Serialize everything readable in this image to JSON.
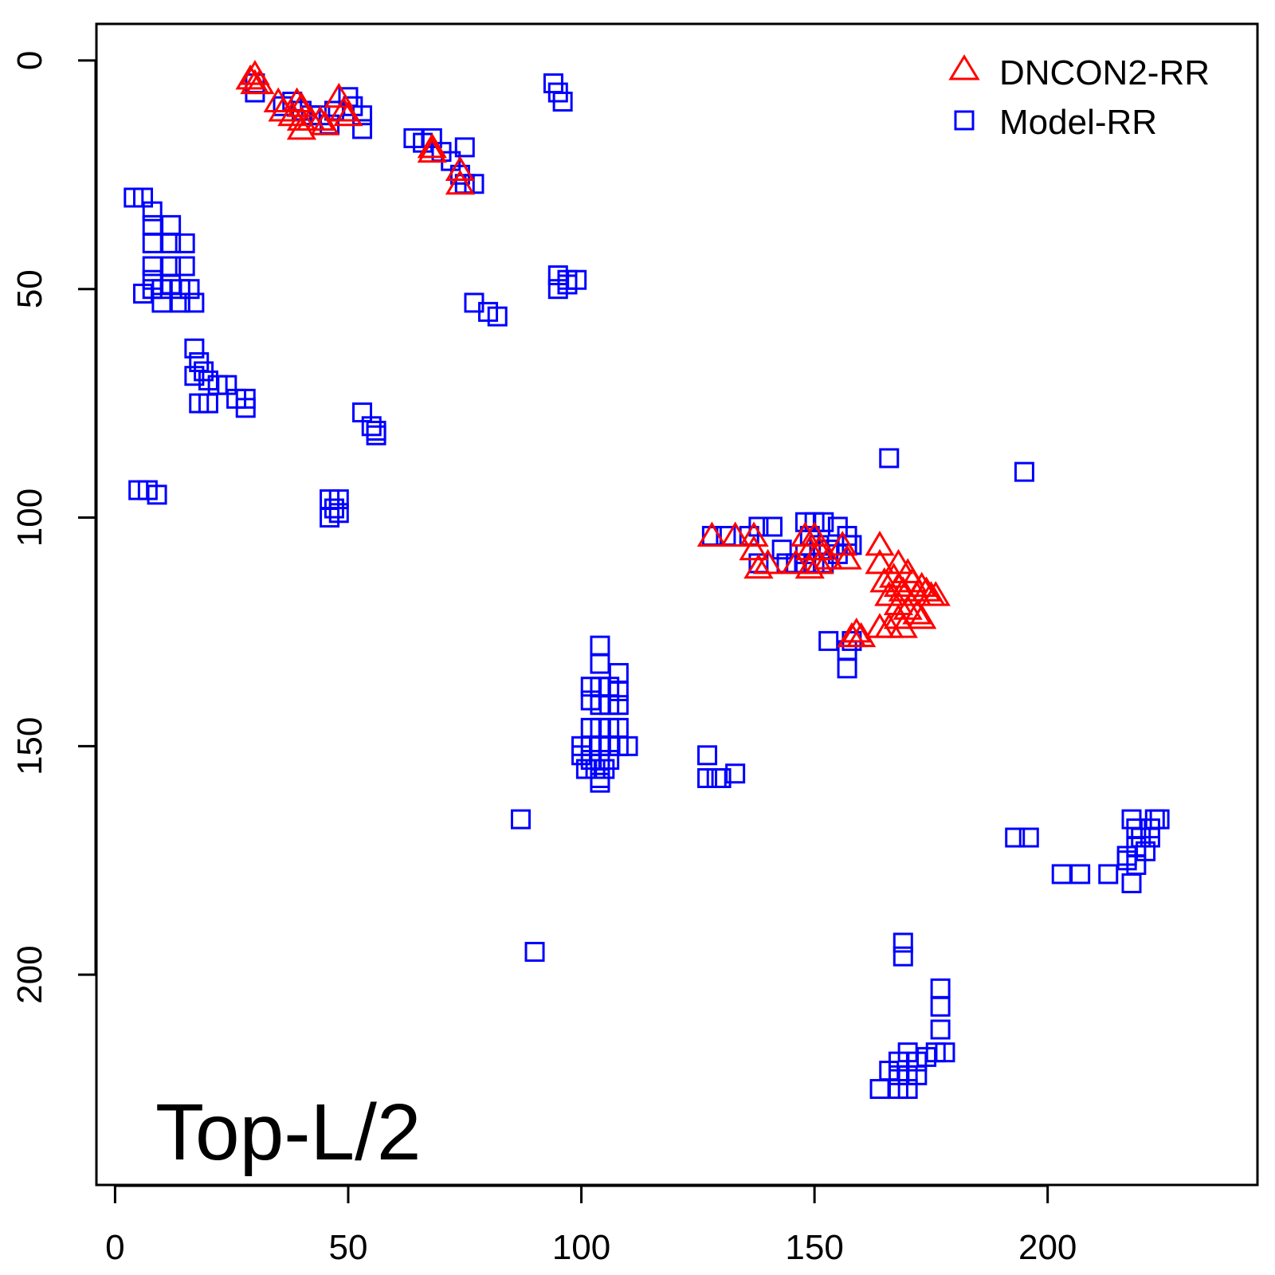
{
  "chart_data": {
    "type": "scatter",
    "title": "",
    "annotation": "Top-L/2",
    "x_ticks": [
      "0",
      "50",
      "100",
      "150",
      "200"
    ],
    "y_ticks": [
      "0",
      "50",
      "100",
      "150",
      "200"
    ],
    "xlim": [
      -4,
      245
    ],
    "ylim": [
      -8,
      246
    ],
    "y_inverted": true,
    "legend_position": "top-right",
    "series": [
      {
        "name": "DNCON2-RR",
        "marker": "triangle",
        "color": "#ff0000",
        "points": [
          [
            29,
            4
          ],
          [
            30,
            3
          ],
          [
            30,
            5
          ],
          [
            31,
            5
          ],
          [
            35,
            9
          ],
          [
            36,
            11
          ],
          [
            38,
            12
          ],
          [
            39,
            9
          ],
          [
            40,
            10
          ],
          [
            40,
            13
          ],
          [
            40,
            15
          ],
          [
            42,
            13
          ],
          [
            44,
            13
          ],
          [
            45,
            14
          ],
          [
            48,
            8
          ],
          [
            49,
            11
          ],
          [
            50,
            12
          ],
          [
            68,
            19
          ],
          [
            68,
            20
          ],
          [
            74,
            24
          ],
          [
            74,
            27
          ],
          [
            128,
            104
          ],
          [
            133,
            104
          ],
          [
            137,
            104
          ],
          [
            137,
            107
          ],
          [
            138,
            111
          ],
          [
            140,
            110
          ],
          [
            146,
            110
          ],
          [
            148,
            104
          ],
          [
            149,
            107
          ],
          [
            149,
            111
          ],
          [
            150,
            104
          ],
          [
            151,
            107
          ],
          [
            151,
            110
          ],
          [
            153,
            109
          ],
          [
            156,
            106
          ],
          [
            157,
            109
          ],
          [
            164,
            106
          ],
          [
            164,
            110
          ],
          [
            165,
            114
          ],
          [
            166,
            117
          ],
          [
            167,
            113
          ],
          [
            168,
            110
          ],
          [
            168,
            115
          ],
          [
            168,
            119
          ],
          [
            169,
            116
          ],
          [
            170,
            112
          ],
          [
            170,
            120
          ],
          [
            171,
            114
          ],
          [
            172,
            117
          ],
          [
            173,
            115
          ],
          [
            174,
            116
          ],
          [
            175,
            117
          ],
          [
            176,
            117
          ],
          [
            164,
            124
          ],
          [
            166,
            124
          ],
          [
            168,
            122
          ],
          [
            169,
            124
          ],
          [
            172,
            121
          ],
          [
            173,
            122
          ],
          [
            158,
            126
          ],
          [
            159,
            125
          ],
          [
            160,
            126
          ]
        ]
      },
      {
        "name": "Model-RR",
        "marker": "square",
        "color": "#0000ff",
        "points": [
          [
            30,
            5
          ],
          [
            30,
            7
          ],
          [
            36,
            10
          ],
          [
            38,
            9
          ],
          [
            40,
            11
          ],
          [
            42,
            12
          ],
          [
            44,
            12
          ],
          [
            46,
            14
          ],
          [
            47,
            11
          ],
          [
            50,
            8
          ],
          [
            51,
            10
          ],
          [
            53,
            12
          ],
          [
            53,
            15
          ],
          [
            94,
            5
          ],
          [
            95,
            7
          ],
          [
            96,
            9
          ],
          [
            64,
            17
          ],
          [
            66,
            18
          ],
          [
            68,
            17
          ],
          [
            70,
            20
          ],
          [
            72,
            22
          ],
          [
            74,
            25
          ],
          [
            75,
            19
          ],
          [
            75,
            27
          ],
          [
            77,
            27
          ],
          [
            4,
            30
          ],
          [
            6,
            30
          ],
          [
            8,
            33
          ],
          [
            12,
            36
          ],
          [
            8,
            36
          ],
          [
            8,
            40
          ],
          [
            12,
            40
          ],
          [
            15,
            40
          ],
          [
            8,
            45
          ],
          [
            12,
            45
          ],
          [
            15,
            45
          ],
          [
            8,
            48
          ],
          [
            8,
            50
          ],
          [
            10,
            50
          ],
          [
            12,
            49
          ],
          [
            14,
            50
          ],
          [
            16,
            50
          ],
          [
            6,
            51
          ],
          [
            10,
            53
          ],
          [
            14,
            53
          ],
          [
            17,
            53
          ],
          [
            95,
            47
          ],
          [
            97,
            48
          ],
          [
            99,
            48
          ],
          [
            95,
            50
          ],
          [
            97,
            49
          ],
          [
            77,
            53
          ],
          [
            80,
            55
          ],
          [
            82,
            56
          ],
          [
            17,
            63
          ],
          [
            18,
            66
          ],
          [
            17,
            69
          ],
          [
            19,
            68
          ],
          [
            20,
            70
          ],
          [
            22,
            71
          ],
          [
            24,
            71
          ],
          [
            18,
            75
          ],
          [
            20,
            75
          ],
          [
            26,
            74
          ],
          [
            28,
            74
          ],
          [
            28,
            76
          ],
          [
            53,
            77
          ],
          [
            55,
            80
          ],
          [
            56,
            81
          ],
          [
            56,
            82
          ],
          [
            5,
            94
          ],
          [
            7,
            94
          ],
          [
            9,
            95
          ],
          [
            46,
            96
          ],
          [
            47,
            98
          ],
          [
            48,
            99
          ],
          [
            46,
            100
          ],
          [
            48,
            96
          ],
          [
            128,
            104
          ],
          [
            131,
            104
          ],
          [
            136,
            104
          ],
          [
            138,
            102
          ],
          [
            141,
            102
          ],
          [
            143,
            107
          ],
          [
            146,
            110
          ],
          [
            148,
            101
          ],
          [
            150,
            101
          ],
          [
            152,
            101
          ],
          [
            155,
            102
          ],
          [
            157,
            104
          ],
          [
            149,
            104
          ],
          [
            151,
            106
          ],
          [
            153,
            107
          ],
          [
            155,
            108
          ],
          [
            157,
            106
          ],
          [
            158,
            106
          ],
          [
            138,
            110
          ],
          [
            144,
            110
          ],
          [
            148,
            108
          ],
          [
            148,
            110
          ],
          [
            150,
            110
          ],
          [
            152,
            110
          ],
          [
            166,
            87
          ],
          [
            195,
            90
          ],
          [
            153,
            127
          ],
          [
            157,
            129
          ],
          [
            158,
            127
          ],
          [
            157,
            133
          ],
          [
            104,
            128
          ],
          [
            104,
            132
          ],
          [
            102,
            137
          ],
          [
            104,
            137
          ],
          [
            106,
            137
          ],
          [
            108,
            134
          ],
          [
            102,
            140
          ],
          [
            104,
            141
          ],
          [
            106,
            141
          ],
          [
            108,
            138
          ],
          [
            108,
            141
          ],
          [
            102,
            146
          ],
          [
            104,
            146
          ],
          [
            106,
            146
          ],
          [
            108,
            146
          ],
          [
            108,
            150
          ],
          [
            110,
            150
          ],
          [
            100,
            150
          ],
          [
            102,
            150
          ],
          [
            104,
            150
          ],
          [
            106,
            150
          ],
          [
            100,
            152
          ],
          [
            102,
            153
          ],
          [
            104,
            153
          ],
          [
            106,
            153
          ],
          [
            101,
            155
          ],
          [
            103,
            155
          ],
          [
            105,
            155
          ],
          [
            104,
            157
          ],
          [
            104,
            158
          ],
          [
            127,
            152
          ],
          [
            127,
            157
          ],
          [
            129,
            157
          ],
          [
            130,
            157
          ],
          [
            133,
            156
          ],
          [
            87,
            166
          ],
          [
            90,
            195
          ],
          [
            193,
            170
          ],
          [
            196,
            170
          ],
          [
            203,
            178
          ],
          [
            207,
            178
          ],
          [
            213,
            178
          ],
          [
            217,
            175
          ],
          [
            218,
            180
          ],
          [
            219,
            168
          ],
          [
            220,
            170
          ],
          [
            219,
            172
          ],
          [
            221,
            173
          ],
          [
            222,
            170
          ],
          [
            222,
            168
          ],
          [
            223,
            166
          ],
          [
            224,
            166
          ],
          [
            218,
            166
          ],
          [
            217,
            174
          ],
          [
            219,
            176
          ],
          [
            169,
            193
          ],
          [
            169,
            196
          ],
          [
            177,
            203
          ],
          [
            177,
            207
          ],
          [
            177,
            212
          ],
          [
            178,
            217
          ],
          [
            166,
            221
          ],
          [
            168,
            219
          ],
          [
            170,
            217
          ],
          [
            172,
            219
          ],
          [
            174,
            218
          ],
          [
            176,
            217
          ],
          [
            168,
            222
          ],
          [
            170,
            222
          ],
          [
            172,
            222
          ],
          [
            164,
            225
          ],
          [
            168,
            225
          ],
          [
            170,
            225
          ]
        ]
      }
    ]
  }
}
